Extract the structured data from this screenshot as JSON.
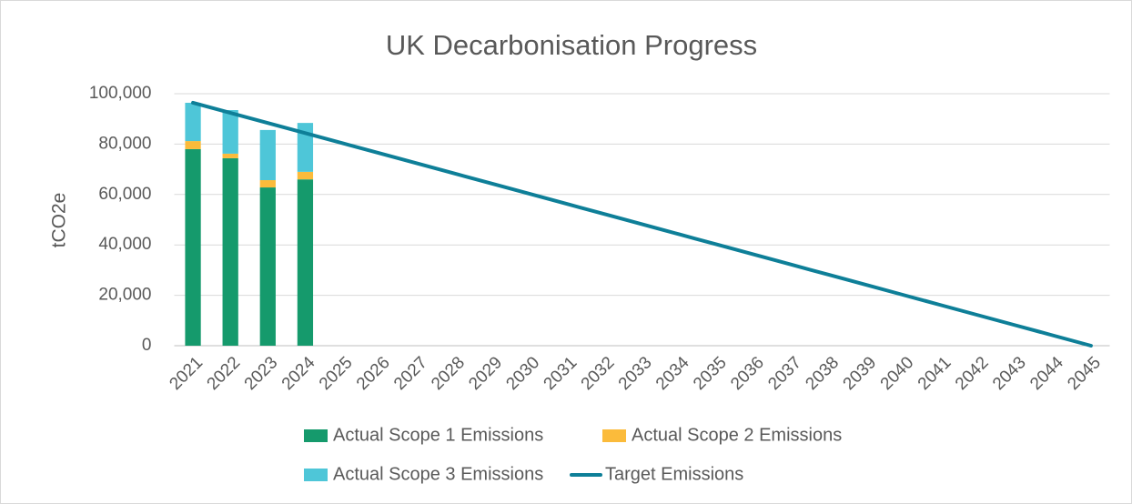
{
  "chart_data": {
    "type": "bar",
    "title": "UK Decarbonisation Progress",
    "y_label": "tCO2e",
    "categories": [
      "2021",
      "2022",
      "2023",
      "2024",
      "2025",
      "2026",
      "2027",
      "2028",
      "2029",
      "2030",
      "2031",
      "2032",
      "2033",
      "2034",
      "2035",
      "2036",
      "2037",
      "2038",
      "2039",
      "2040",
      "2041",
      "2042",
      "2043",
      "2044",
      "2045"
    ],
    "series": [
      {
        "name": "Actual Scope 1 Emissions",
        "type": "bar",
        "color": "#159a6c",
        "values": [
          78000,
          74400,
          62800,
          66000,
          null,
          null,
          null,
          null,
          null,
          null,
          null,
          null,
          null,
          null,
          null,
          null,
          null,
          null,
          null,
          null,
          null,
          null,
          null,
          null,
          null
        ]
      },
      {
        "name": "Actual Scope 2 Emissions",
        "type": "bar",
        "color": "#fbbb3b",
        "values": [
          3200,
          1800,
          2900,
          3000,
          null,
          null,
          null,
          null,
          null,
          null,
          null,
          null,
          null,
          null,
          null,
          null,
          null,
          null,
          null,
          null,
          null,
          null,
          null,
          null,
          null
        ]
      },
      {
        "name": "Actual Scope 3 Emissions",
        "type": "bar",
        "color": "#4ec6d8",
        "values": [
          15200,
          17300,
          19900,
          19400,
          null,
          null,
          null,
          null,
          null,
          null,
          null,
          null,
          null,
          null,
          null,
          null,
          null,
          null,
          null,
          null,
          null,
          null,
          null,
          null,
          null
        ]
      },
      {
        "name": "Target Emissions",
        "type": "line",
        "color": "#0e7f98",
        "values": [
          96400,
          92383,
          88367,
          84350,
          80333,
          76317,
          72300,
          68283,
          64267,
          60250,
          56233,
          52217,
          48200,
          44183,
          40167,
          36150,
          32133,
          28117,
          24100,
          20083,
          16067,
          12050,
          8033,
          4017,
          0
        ]
      }
    ],
    "ylim": [
      0,
      100000
    ],
    "yticks": [
      0,
      {
        "value": 20000,
        "label": "20,000"
      },
      {
        "value": 40000,
        "label": "40,000"
      },
      {
        "value": 60000,
        "label": "60,000"
      },
      {
        "value": 80000,
        "label": "80,000"
      },
      {
        "value": 100000,
        "label": "100,000"
      }
    ],
    "grid": true,
    "stacked": true,
    "legend": "bottom"
  }
}
